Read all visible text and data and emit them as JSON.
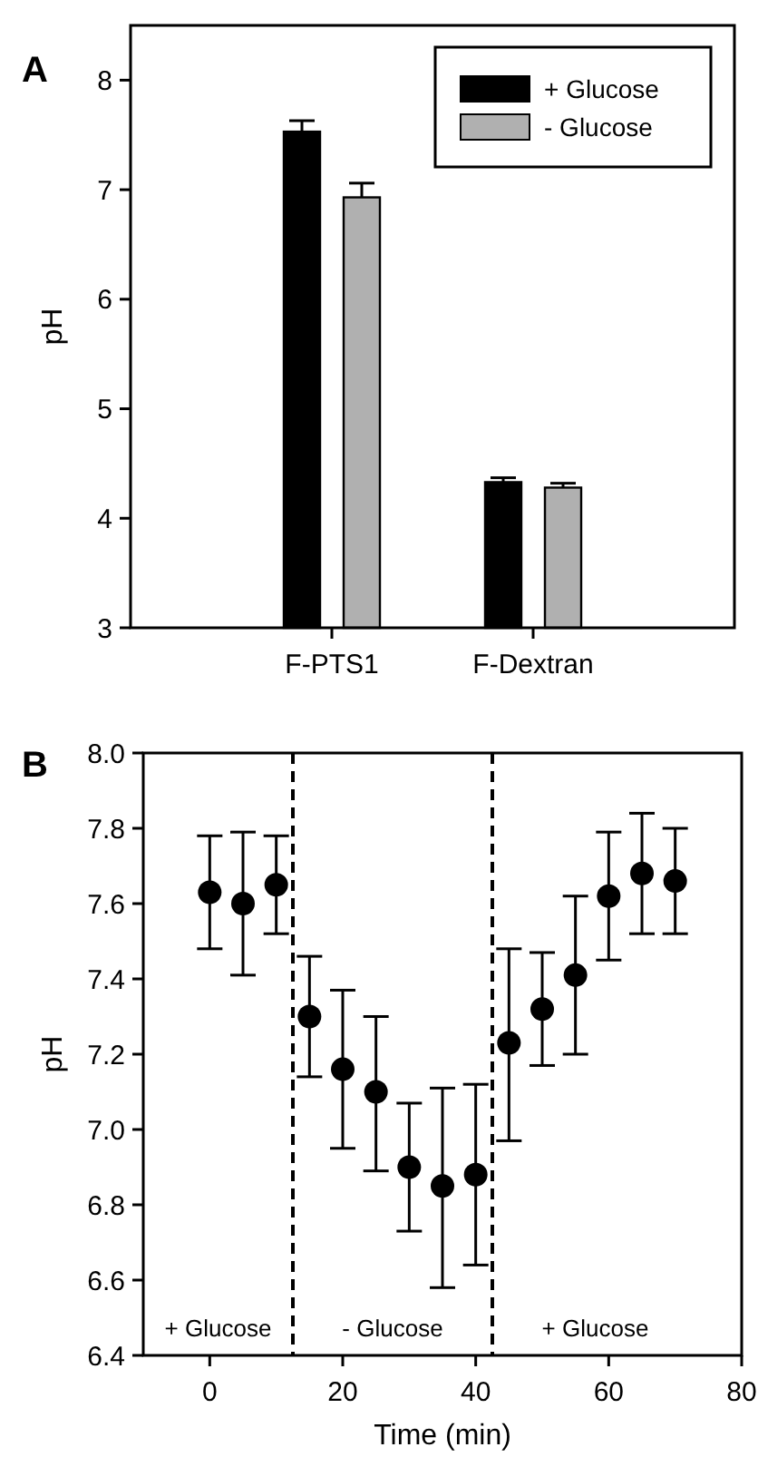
{
  "chart_data": [
    {
      "type": "bar",
      "title": "A",
      "ylabel": "pH",
      "categories": [
        "F-PTS1",
        "F-Dextran"
      ],
      "ylim": [
        3,
        8.5
      ],
      "yticks": [
        3,
        4,
        5,
        6,
        7,
        8
      ],
      "legend": "top right",
      "series": [
        {
          "name": "+ Glucose",
          "color": "#000000",
          "values": [
            7.53,
            4.33
          ],
          "errors": [
            0.1,
            0.04
          ]
        },
        {
          "name": "- Glucose",
          "color": "#b0b0b0",
          "values": [
            6.93,
            4.28
          ],
          "errors": [
            0.13,
            0.04
          ]
        }
      ]
    },
    {
      "type": "scatter",
      "title": "B",
      "xlabel": "Time (min)",
      "ylabel": "pH",
      "marker": "circle",
      "xlim": [
        -10,
        80
      ],
      "xticks": [
        0,
        20,
        40,
        60,
        80
      ],
      "ylim": [
        6.4,
        8.0
      ],
      "yticks": [
        {
          "value": 6.4,
          "label": "6.4"
        },
        {
          "value": 6.6,
          "label": "6.6"
        },
        {
          "value": 6.8,
          "label": "6.8"
        },
        {
          "value": 7.0,
          "label": "7.0"
        },
        {
          "value": 7.2,
          "label": "7.2"
        },
        {
          "value": 7.4,
          "label": "7.4"
        },
        {
          "value": 7.6,
          "label": "7.6"
        },
        {
          "value": 7.8,
          "label": "7.8"
        },
        {
          "value": 8.0,
          "label": "8.0"
        }
      ],
      "ref_lines": [
        {
          "axis": "x",
          "value": 12.5,
          "line_style": "dashed",
          "color": "#000000"
        },
        {
          "axis": "x",
          "value": 42.5,
          "line_style": "dashed",
          "color": "#000000"
        }
      ],
      "annotations": [
        "+ Glucose",
        "- Glucose",
        "+ Glucose"
      ],
      "series": [
        {
          "color": "#000000",
          "x": [
            0,
            5,
            10,
            15,
            20,
            25,
            30,
            35,
            40,
            45,
            50,
            55,
            60,
            65,
            70
          ],
          "values": [
            7.63,
            7.6,
            7.65,
            7.3,
            7.16,
            7.1,
            6.9,
            6.85,
            6.88,
            7.23,
            7.32,
            7.41,
            7.62,
            7.68,
            7.66
          ],
          "errors": [
            [
              7.48,
              7.78
            ],
            [
              7.41,
              7.79
            ],
            [
              7.52,
              7.78
            ],
            [
              7.14,
              7.46
            ],
            [
              6.95,
              7.37
            ],
            [
              6.89,
              7.3
            ],
            [
              6.73,
              7.07
            ],
            [
              6.58,
              7.11
            ],
            [
              6.64,
              7.12
            ],
            [
              6.97,
              7.48
            ],
            [
              7.17,
              7.47
            ],
            [
              7.2,
              7.62
            ],
            [
              7.45,
              7.79
            ],
            [
              7.52,
              7.84
            ],
            [
              7.52,
              7.8
            ]
          ]
        }
      ]
    }
  ]
}
